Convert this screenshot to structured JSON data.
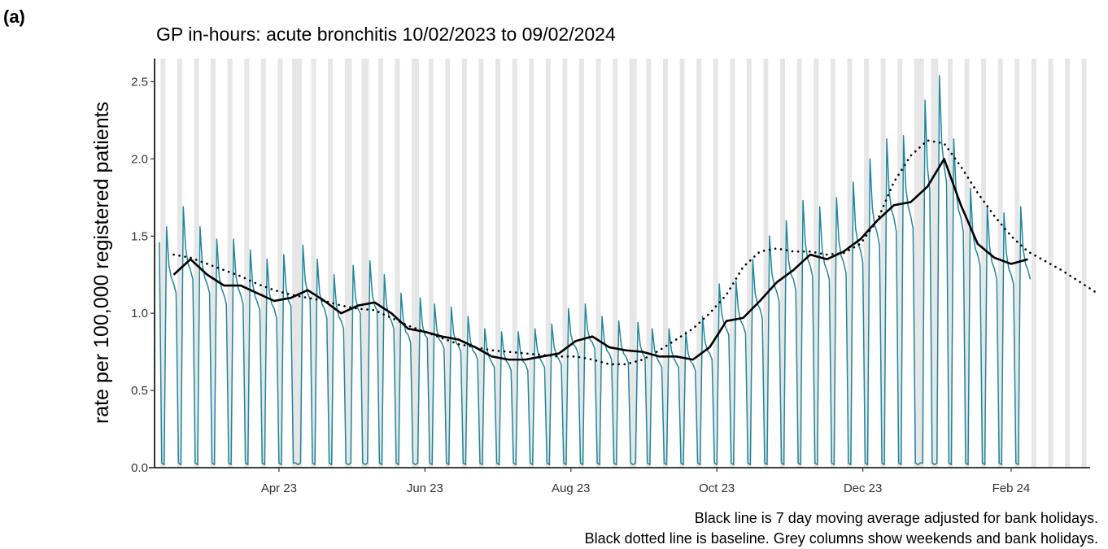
{
  "chart_data": {
    "type": "line",
    "panel_label": "(a)",
    "title": "GP in-hours: acute bronchitis 10/02/2023 to 09/02/2024",
    "y_label": "rate per 100,000 registered patients",
    "captions": [
      "Black line is 7 day moving average adjusted for bank holidays.",
      "Black dotted line is baseline. Grey columns show weekends and bank holidays."
    ],
    "xlim": [
      "2023-02-08",
      "2024-03-05"
    ],
    "xticks": [
      {
        "value": "2023-04-01",
        "label": "Apr 23"
      },
      {
        "value": "2023-06-01",
        "label": "Jun 23"
      },
      {
        "value": "2023-08-01",
        "label": "Aug 23"
      },
      {
        "value": "2023-10-01",
        "label": "Oct 23"
      },
      {
        "value": "2023-12-01",
        "label": "Dec 23"
      },
      {
        "value": "2024-02-01",
        "label": "Feb 24"
      }
    ],
    "ylim": [
      0,
      2.65
    ],
    "yticks": [
      {
        "value": 0,
        "label": "0.0"
      },
      0.5,
      {
        "value": 1,
        "label": "1.0"
      },
      1.5,
      {
        "value": 2,
        "label": "2.0"
      },
      2.5
    ],
    "shade_weekends": true,
    "shade_color": "#e6e6e6",
    "bank_holidays": [
      "2023-04-07",
      "2023-04-10",
      "2023-05-01",
      "2023-05-08",
      "2023-05-29",
      "2023-08-28",
      "2023-12-25",
      "2023-12-26",
      "2024-01-01"
    ],
    "series": [
      {
        "name": "daily rate",
        "color": "#1f879c",
        "style": "solid",
        "start": "2023-02-10",
        "step_days": 1,
        "values": [
          1.46,
          0.03,
          0.02,
          1.56,
          1.31,
          1.23,
          1.19,
          1.13,
          0.03,
          0.02,
          1.69,
          1.42,
          1.32,
          1.28,
          1.22,
          0.03,
          0.02,
          1.56,
          1.31,
          1.23,
          1.19,
          1.13,
          0.03,
          0.02,
          1.48,
          1.24,
          1.16,
          1.12,
          1.06,
          0.03,
          0.02,
          1.48,
          1.24,
          1.16,
          1.12,
          1.06,
          0.03,
          0.02,
          1.41,
          1.19,
          1.11,
          1.07,
          1.02,
          0.03,
          0.02,
          1.35,
          1.13,
          1.06,
          1.03,
          0.97,
          0.03,
          0.02,
          1.38,
          1.16,
          1.08,
          1.05,
          0.03,
          0.03,
          0.02,
          0.03,
          1.44,
          1.21,
          1.13,
          1.09,
          0.03,
          0.02,
          1.35,
          1.13,
          1.06,
          1.03,
          0.97,
          0.03,
          0.02,
          1.25,
          1.05,
          0.98,
          0.95,
          0.9,
          0.03,
          0.02,
          0.03,
          1.31,
          1.1,
          1.03,
          1.0,
          0.03,
          0.02,
          0.03,
          1.34,
          1.12,
          1.05,
          1.02,
          0.03,
          0.02,
          1.25,
          1.05,
          0.98,
          0.95,
          0.9,
          0.03,
          0.02,
          1.13,
          0.95,
          0.88,
          0.86,
          0.81,
          0.03,
          0.02,
          0.03,
          1.1,
          0.92,
          0.86,
          0.84,
          0.03,
          0.02,
          1.06,
          0.89,
          0.83,
          0.81,
          0.77,
          0.03,
          0.02,
          1.04,
          0.87,
          0.81,
          0.79,
          0.75,
          0.03,
          0.02,
          0.98,
          0.82,
          0.76,
          0.74,
          0.7,
          0.03,
          0.02,
          0.9,
          0.76,
          0.71,
          0.68,
          0.65,
          0.03,
          0.02,
          0.88,
          0.74,
          0.69,
          0.67,
          0.63,
          0.03,
          0.02,
          0.88,
          0.74,
          0.69,
          0.67,
          0.63,
          0.03,
          0.02,
          0.9,
          0.76,
          0.71,
          0.68,
          0.65,
          0.03,
          0.02,
          0.93,
          0.78,
          0.73,
          0.7,
          0.67,
          0.03,
          0.02,
          1.03,
          0.86,
          0.8,
          0.78,
          0.74,
          0.03,
          0.02,
          1.06,
          0.89,
          0.83,
          0.81,
          0.77,
          0.03,
          0.02,
          0.98,
          0.82,
          0.76,
          0.74,
          0.7,
          0.03,
          0.02,
          0.95,
          0.8,
          0.74,
          0.72,
          0.68,
          0.03,
          0.02,
          0.03,
          0.94,
          0.79,
          0.74,
          0.71,
          0.03,
          0.02,
          0.9,
          0.76,
          0.71,
          0.68,
          0.65,
          0.03,
          0.02,
          0.9,
          0.76,
          0.71,
          0.68,
          0.65,
          0.03,
          0.02,
          0.88,
          0.74,
          0.69,
          0.67,
          0.63,
          0.03,
          0.02,
          0.98,
          0.82,
          0.76,
          0.74,
          0.7,
          0.03,
          0.02,
          1.19,
          1.0,
          0.93,
          0.9,
          0.86,
          0.03,
          0.02,
          1.21,
          1.02,
          0.95,
          0.92,
          0.87,
          0.03,
          0.02,
          1.35,
          1.13,
          1.06,
          1.03,
          0.97,
          0.03,
          0.02,
          1.5,
          1.26,
          1.18,
          1.14,
          1.08,
          0.03,
          0.02,
          1.6,
          1.34,
          1.25,
          1.22,
          1.15,
          0.03,
          0.02,
          1.73,
          1.45,
          1.35,
          1.31,
          1.24,
          0.03,
          0.02,
          1.69,
          1.42,
          1.32,
          1.28,
          1.22,
          0.03,
          0.02,
          1.75,
          1.47,
          1.37,
          1.33,
          1.26,
          0.03,
          0.02,
          1.85,
          1.55,
          1.45,
          1.41,
          1.33,
          0.03,
          0.02,
          2.0,
          1.68,
          1.57,
          1.52,
          1.44,
          0.03,
          0.02,
          2.13,
          1.79,
          1.67,
          1.62,
          1.53,
          0.03,
          0.02,
          2.15,
          1.81,
          1.69,
          1.63,
          1.55,
          0.03,
          0.02,
          0.03,
          0.03,
          2.38,
          1.95,
          1.8,
          0.03,
          0.02,
          0.03,
          2.54,
          2.1,
          1.95,
          1.85,
          0.03,
          0.02,
          2.13,
          1.79,
          1.67,
          1.62,
          1.53,
          0.03,
          0.02,
          1.81,
          1.52,
          1.42,
          1.38,
          1.31,
          0.03,
          0.02,
          1.7,
          1.43,
          1.33,
          1.29,
          1.22,
          0.03,
          0.02,
          1.65,
          1.39,
          1.29,
          1.25,
          1.19,
          0.03,
          0.02,
          1.69,
          1.42,
          1.32,
          1.28,
          1.22
        ]
      },
      {
        "name": "7 day moving average",
        "color": "#000000",
        "style": "solid",
        "start": "2023-02-16",
        "step_days": 7,
        "values": [
          1.25,
          1.35,
          1.25,
          1.18,
          1.18,
          1.13,
          1.08,
          1.1,
          1.15,
          1.08,
          1.0,
          1.05,
          1.07,
          1.0,
          0.9,
          0.88,
          0.85,
          0.83,
          0.78,
          0.72,
          0.7,
          0.7,
          0.72,
          0.74,
          0.82,
          0.85,
          0.78,
          0.76,
          0.75,
          0.72,
          0.72,
          0.7,
          0.78,
          0.95,
          0.97,
          1.08,
          1.2,
          1.28,
          1.38,
          1.35,
          1.4,
          1.48,
          1.6,
          1.7,
          1.72,
          1.82,
          2.0,
          1.7,
          1.45,
          1.36,
          1.32,
          1.35
        ]
      },
      {
        "name": "baseline",
        "color": "#000000",
        "style": "dotted",
        "start": "2023-02-16",
        "step_days": 7,
        "values": [
          1.38,
          1.36,
          1.32,
          1.28,
          1.24,
          1.19,
          1.15,
          1.12,
          1.1,
          1.08,
          1.05,
          1.03,
          1.02,
          0.97,
          0.92,
          0.88,
          0.84,
          0.8,
          0.78,
          0.76,
          0.75,
          0.74,
          0.73,
          0.72,
          0.72,
          0.7,
          0.67,
          0.67,
          0.7,
          0.76,
          0.83,
          0.9,
          1.0,
          1.12,
          1.3,
          1.4,
          1.42,
          1.4,
          1.4,
          1.38,
          1.39,
          1.45,
          1.6,
          1.85,
          2.02,
          2.12,
          2.1,
          1.95,
          1.78,
          1.63,
          1.5,
          1.4,
          1.34,
          1.28,
          1.21,
          1.14
        ]
      }
    ]
  }
}
